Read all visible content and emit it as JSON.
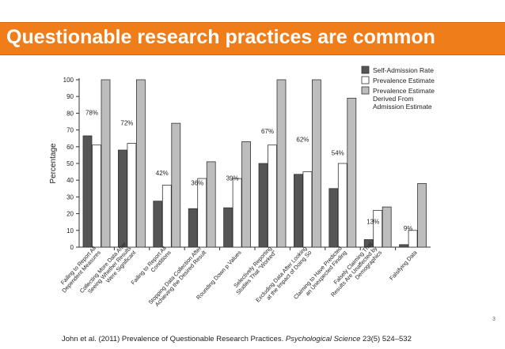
{
  "slide": {
    "title": "Questionable research practices are common",
    "citation": {
      "before": "John et al. (2011) Prevalence of Questionable Research Practices. ",
      "journal": "Psychological Science",
      "after": " 23(5) 524–532"
    },
    "page_number": "3"
  },
  "colors": {
    "title_bar": "#ef7d1a",
    "self_admission": "#555555",
    "prevalence": "#ffffff",
    "derived": "#bdbdbd"
  },
  "chart_data": {
    "type": "bar",
    "ylabel": "Percentage",
    "ylim": [
      0,
      100
    ],
    "yticks": [
      0,
      10,
      20,
      30,
      40,
      50,
      60,
      70,
      80,
      90,
      100
    ],
    "grid": false,
    "legend_position": "top-right",
    "categories": [
      [
        "Failing to Report All",
        "Dependent Measures"
      ],
      [
        "Collecting More Data After",
        "Seeing Whether Results",
        "Were Significant"
      ],
      [
        "Failing to Report All",
        "Conditions"
      ],
      [
        "Stopping Data Collection After",
        "Achieving the Desired Result"
      ],
      [
        "Rounding Down p Values"
      ],
      [
        "Selectively Reporting",
        "Studies That \"Worked\""
      ],
      [
        "Excluding Data After Looking",
        "at the Impact of Doing So"
      ],
      [
        "Claiming to Have Predicted",
        "an Unexpected Finding"
      ],
      [
        "Falsely Claiming That",
        "Results Are Unaffected by",
        "Demographics"
      ],
      [
        "Falsifying Data"
      ]
    ],
    "series": [
      {
        "name": "Self-Admission Rate",
        "values": [
          66.5,
          58,
          27.5,
          23,
          23.5,
          50,
          43.5,
          35,
          4.5,
          1.5
        ]
      },
      {
        "name": "Prevalence Estimate",
        "values": [
          61,
          62,
          37,
          41,
          41,
          61,
          45,
          50,
          22,
          10
        ]
      },
      {
        "name": "Prevalence Estimate Derived From Admission Estimate",
        "values": [
          100,
          100,
          74,
          51,
          63,
          100,
          100,
          89,
          24,
          38
        ]
      }
    ],
    "legend_labels": [
      [
        "Self-Admission Rate"
      ],
      [
        "Prevalence Estimate"
      ],
      [
        "Prevalence Estimate",
        "Derived From",
        "Admission Estimate"
      ]
    ],
    "annotations": [
      "78%",
      "72%",
      "42%",
      "36%",
      "39%",
      "67%",
      "62%",
      "54%",
      "13%",
      "9%"
    ],
    "annotation_y": [
      78,
      72,
      42,
      36,
      39,
      67,
      62,
      54,
      13,
      9
    ]
  }
}
